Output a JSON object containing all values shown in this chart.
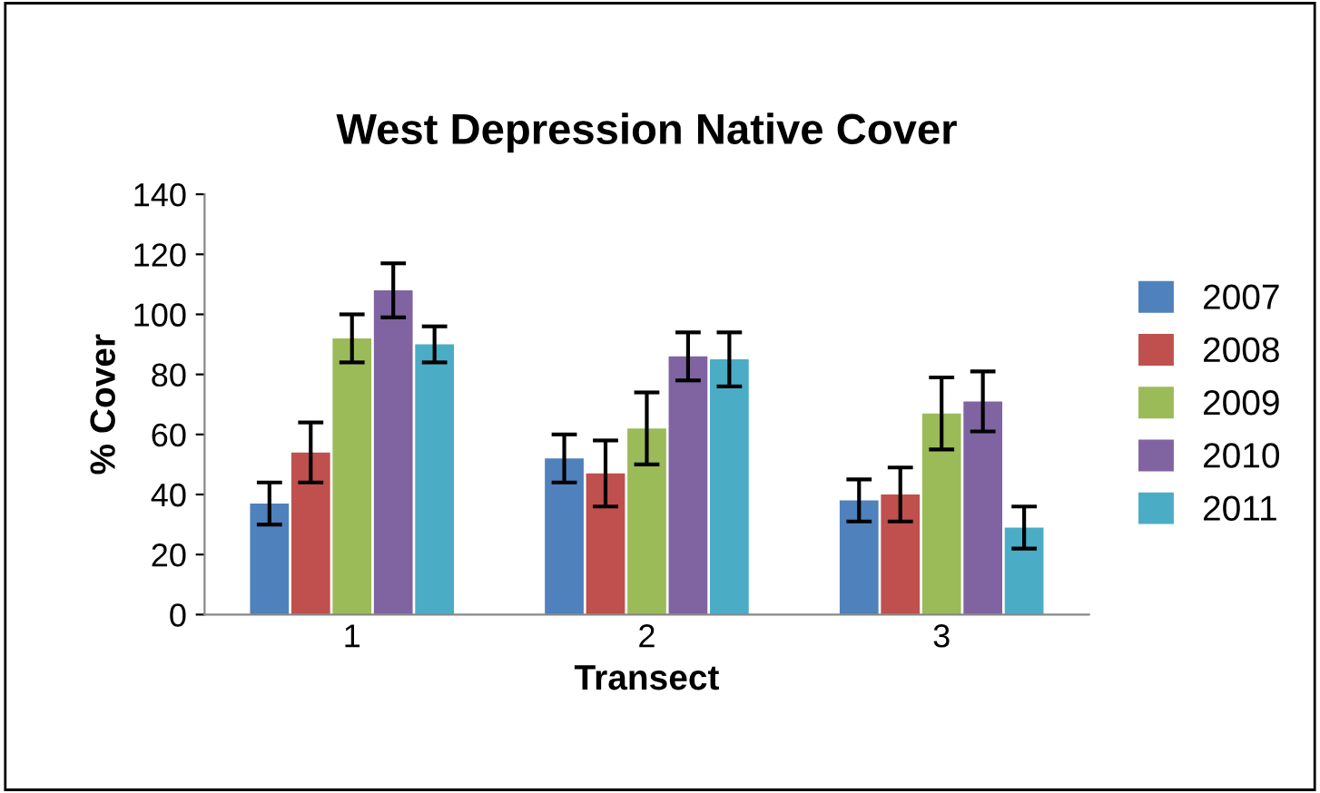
{
  "chart_data": {
    "type": "bar",
    "title": "West Depression Native Cover",
    "xlabel": "Transect",
    "ylabel": "% Cover",
    "categories": [
      "1",
      "2",
      "3"
    ],
    "series": [
      {
        "name": "2007",
        "color": "#4f81bd",
        "values": [
          37,
          52,
          38
        ],
        "errors": [
          7,
          8,
          7
        ]
      },
      {
        "name": "2008",
        "color": "#c0504d",
        "values": [
          54,
          47,
          40
        ],
        "errors": [
          10,
          11,
          9
        ]
      },
      {
        "name": "2009",
        "color": "#9bbb59",
        "values": [
          92,
          62,
          67
        ],
        "errors": [
          8,
          12,
          12
        ]
      },
      {
        "name": "2010",
        "color": "#8064a2",
        "values": [
          108,
          86,
          71
        ],
        "errors": [
          9,
          8,
          10
        ]
      },
      {
        "name": "2011",
        "color": "#4bacc6",
        "values": [
          90,
          85,
          29
        ],
        "errors": [
          6,
          9,
          7
        ]
      }
    ],
    "ylim": [
      0,
      140
    ],
    "yticks": [
      0,
      20,
      40,
      60,
      80,
      100,
      120,
      140
    ],
    "grid": false,
    "legend": "right"
  }
}
